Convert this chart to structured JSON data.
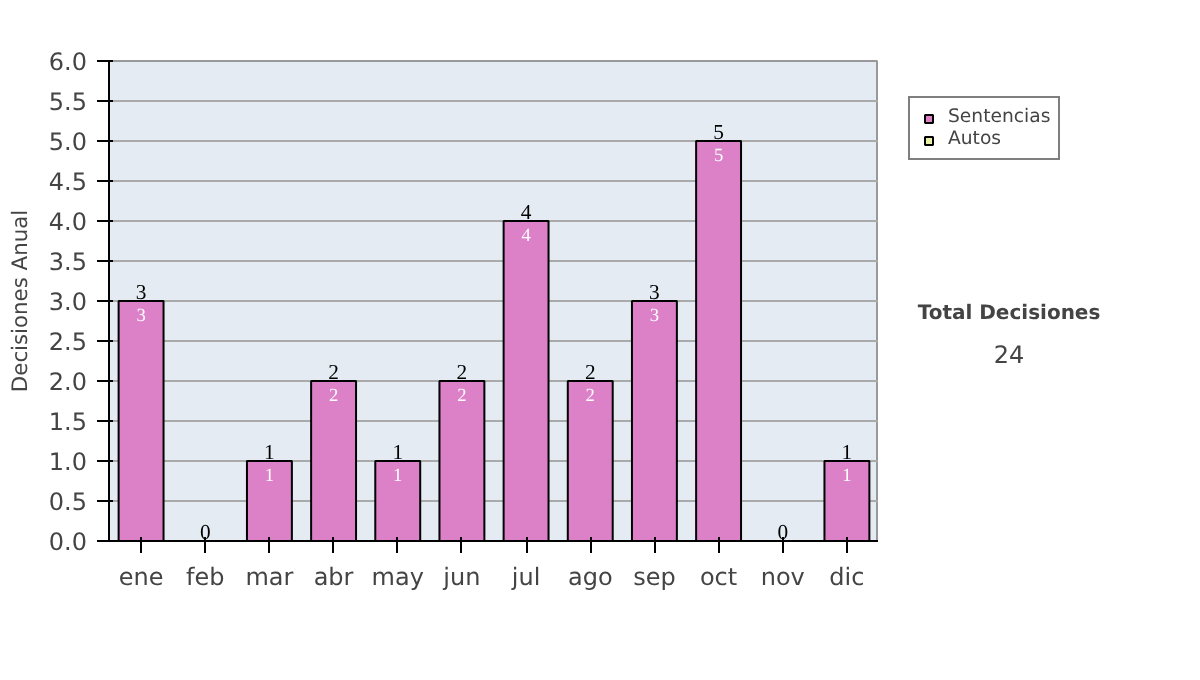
{
  "chart_data": {
    "type": "bar",
    "stacked": true,
    "ylabel": "Decisiones Anual",
    "categories": [
      "ene",
      "feb",
      "mar",
      "abr",
      "may",
      "jun",
      "jul",
      "ago",
      "sep",
      "oct",
      "nov",
      "dic"
    ],
    "series": [
      {
        "name": "Sentencias",
        "color": "#dc80c8",
        "values": [
          3,
          0,
          1,
          2,
          1,
          2,
          4,
          2,
          3,
          5,
          0,
          1
        ],
        "value_labels": [
          "3",
          null,
          "1",
          "2",
          "1",
          "2",
          "4",
          "2",
          "3",
          "5",
          null,
          "1"
        ]
      },
      {
        "name": "Autos",
        "color": "#e8f0a8",
        "values": [
          0,
          0,
          0,
          0,
          0,
          0,
          0,
          0,
          0,
          0,
          0,
          0
        ]
      }
    ],
    "totals": [
      "3",
      "0",
      "1",
      "2",
      "1",
      "2",
      "4",
      "2",
      "3",
      "5",
      "0",
      "1"
    ],
    "ylim": [
      0,
      6
    ],
    "yticks": [
      {
        "value": 0,
        "label": "0.0"
      },
      {
        "value": 0.5,
        "label": "0.5"
      },
      {
        "value": 1,
        "label": "1.0"
      },
      {
        "value": 1.5,
        "label": "1.5"
      },
      {
        "value": 2,
        "label": "2.0"
      },
      {
        "value": 2.5,
        "label": "2.5"
      },
      {
        "value": 3,
        "label": "3.0"
      },
      {
        "value": 3.5,
        "label": "3.5"
      },
      {
        "value": 4,
        "label": "4.0"
      },
      {
        "value": 4.5,
        "label": "4.5"
      },
      {
        "value": 5,
        "label": "5.0"
      },
      {
        "value": 5.5,
        "label": "5.5"
      },
      {
        "value": 6,
        "label": "6.0"
      }
    ],
    "grid": "y",
    "legend": "right",
    "annotations": [
      "Total Decisiones",
      "24"
    ]
  }
}
